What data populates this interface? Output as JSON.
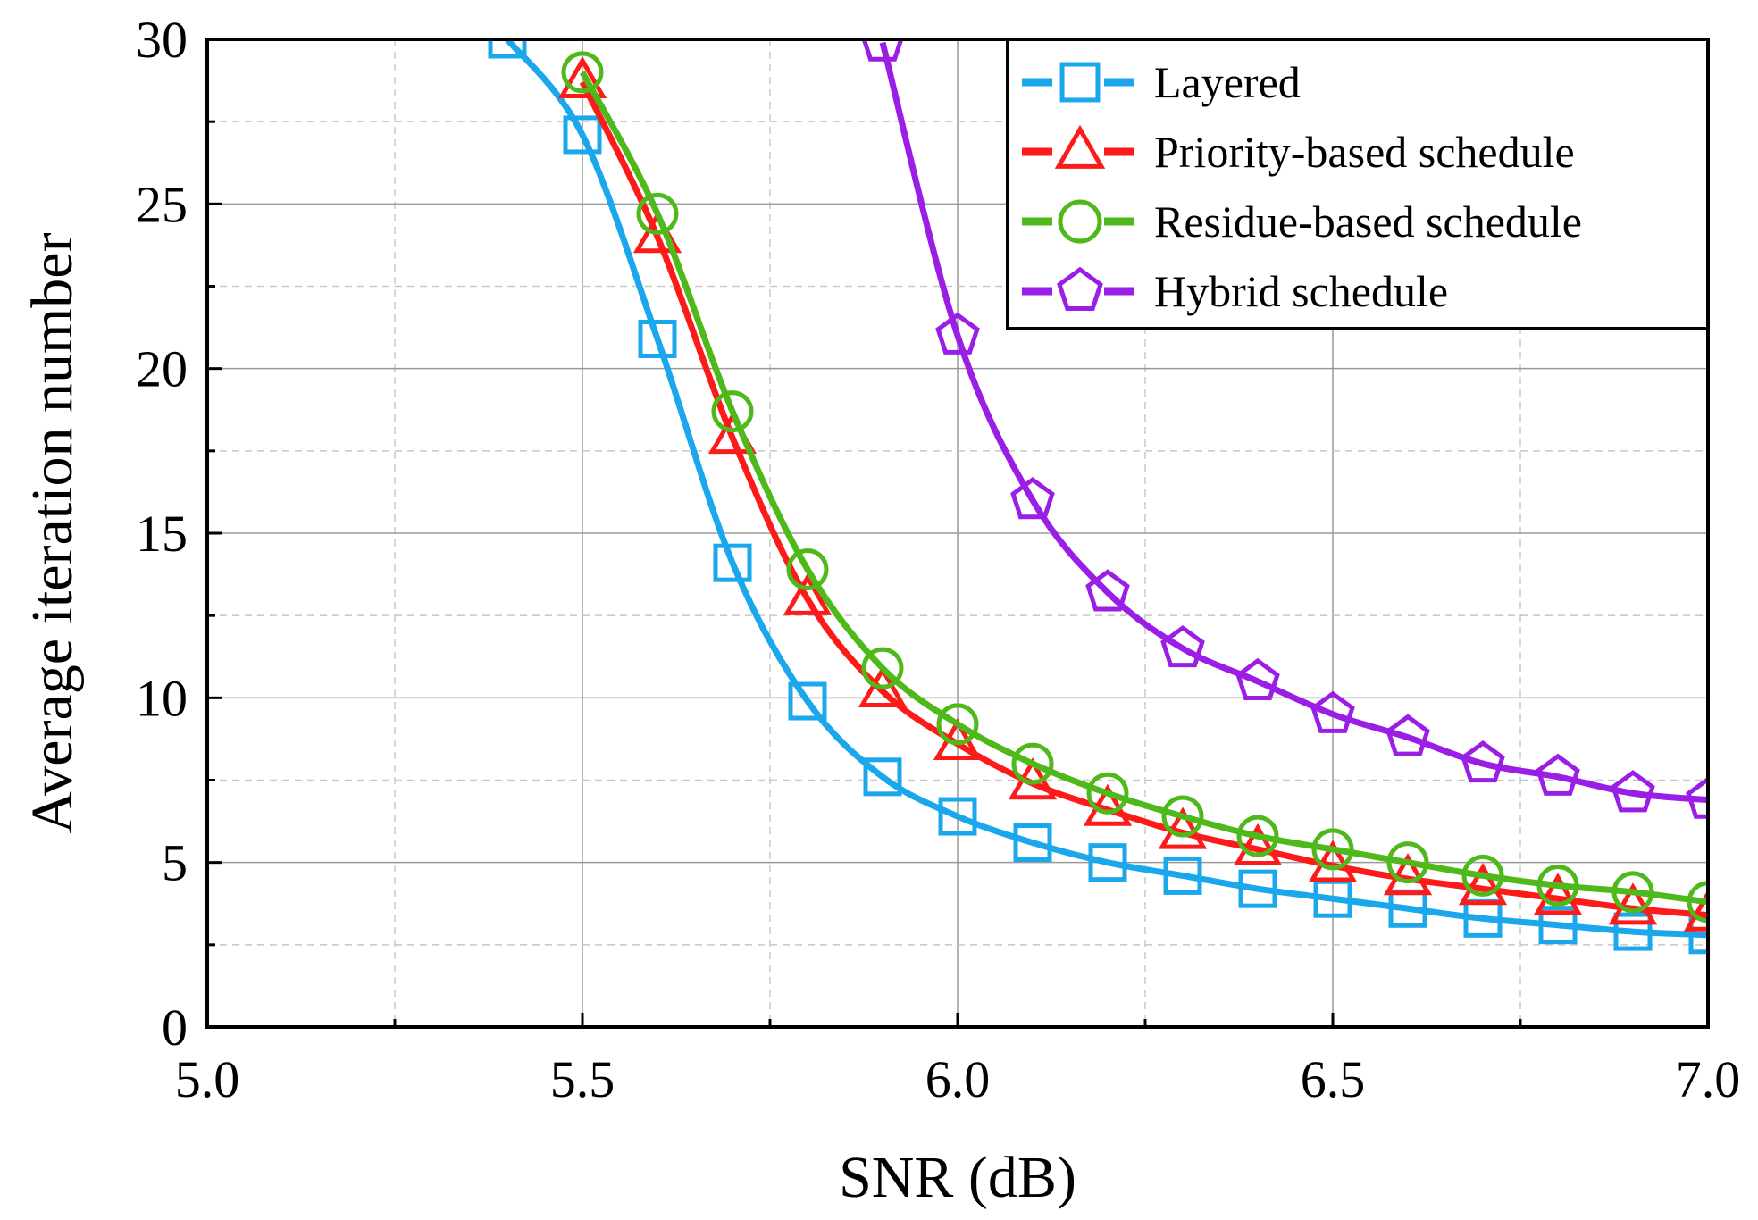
{
  "chart_data": {
    "type": "line",
    "title": "",
    "xlabel": "SNR (dB)",
    "ylabel": "Average iteration number",
    "xlim": [
      5.0,
      7.0
    ],
    "ylim": [
      0,
      30
    ],
    "x_ticks": [
      "5.0",
      "5.5",
      "6.0",
      "6.5",
      "7.0"
    ],
    "y_ticks": [
      "0",
      "5",
      "10",
      "15",
      "20",
      "25",
      "30"
    ],
    "grid": true,
    "legend_position": "top-right",
    "series": [
      {
        "name": "Layered",
        "color": "#1aa7ec",
        "marker": "square",
        "x": [
          5.4,
          5.5,
          5.6,
          5.7,
          5.8,
          5.9,
          6.0,
          6.1,
          6.2,
          6.3,
          6.4,
          6.5,
          6.6,
          6.7,
          6.8,
          6.9,
          7.0
        ],
        "y": [
          30.0,
          27.1,
          20.9,
          14.1,
          9.9,
          7.6,
          6.4,
          5.6,
          5.0,
          4.6,
          4.2,
          3.9,
          3.6,
          3.3,
          3.1,
          2.9,
          2.8
        ]
      },
      {
        "name": "Priority-based schedule",
        "color": "#ff1a1a",
        "marker": "triangle",
        "x": [
          5.5,
          5.6,
          5.7,
          5.8,
          5.9,
          6.0,
          6.1,
          6.2,
          6.3,
          6.4,
          6.5,
          6.6,
          6.7,
          6.8,
          6.9,
          7.0
        ],
        "y": [
          28.7,
          24.0,
          17.9,
          13.0,
          10.2,
          8.6,
          7.4,
          6.6,
          5.9,
          5.4,
          4.9,
          4.5,
          4.2,
          3.9,
          3.6,
          3.4
        ]
      },
      {
        "name": "Residue-based schedule",
        "color": "#4fb81a",
        "marker": "circle",
        "x": [
          5.5,
          5.6,
          5.7,
          5.8,
          5.9,
          6.0,
          6.1,
          6.2,
          6.3,
          6.4,
          6.5,
          6.6,
          6.7,
          6.8,
          6.9,
          7.0
        ],
        "y": [
          29.0,
          24.7,
          18.7,
          13.9,
          10.9,
          9.2,
          8.0,
          7.1,
          6.4,
          5.8,
          5.4,
          5.0,
          4.6,
          4.3,
          4.1,
          3.8
        ]
      },
      {
        "name": "Hybrid schedule",
        "color": "#9b1ee6",
        "marker": "pentagon",
        "x": [
          5.9,
          6.0,
          6.1,
          6.2,
          6.3,
          6.4,
          6.5,
          6.6,
          6.7,
          6.8,
          6.9,
          7.0
        ],
        "y": [
          29.9,
          21.0,
          16.0,
          13.2,
          11.5,
          10.5,
          9.5,
          8.8,
          8.0,
          7.6,
          7.1,
          6.9
        ]
      }
    ]
  }
}
